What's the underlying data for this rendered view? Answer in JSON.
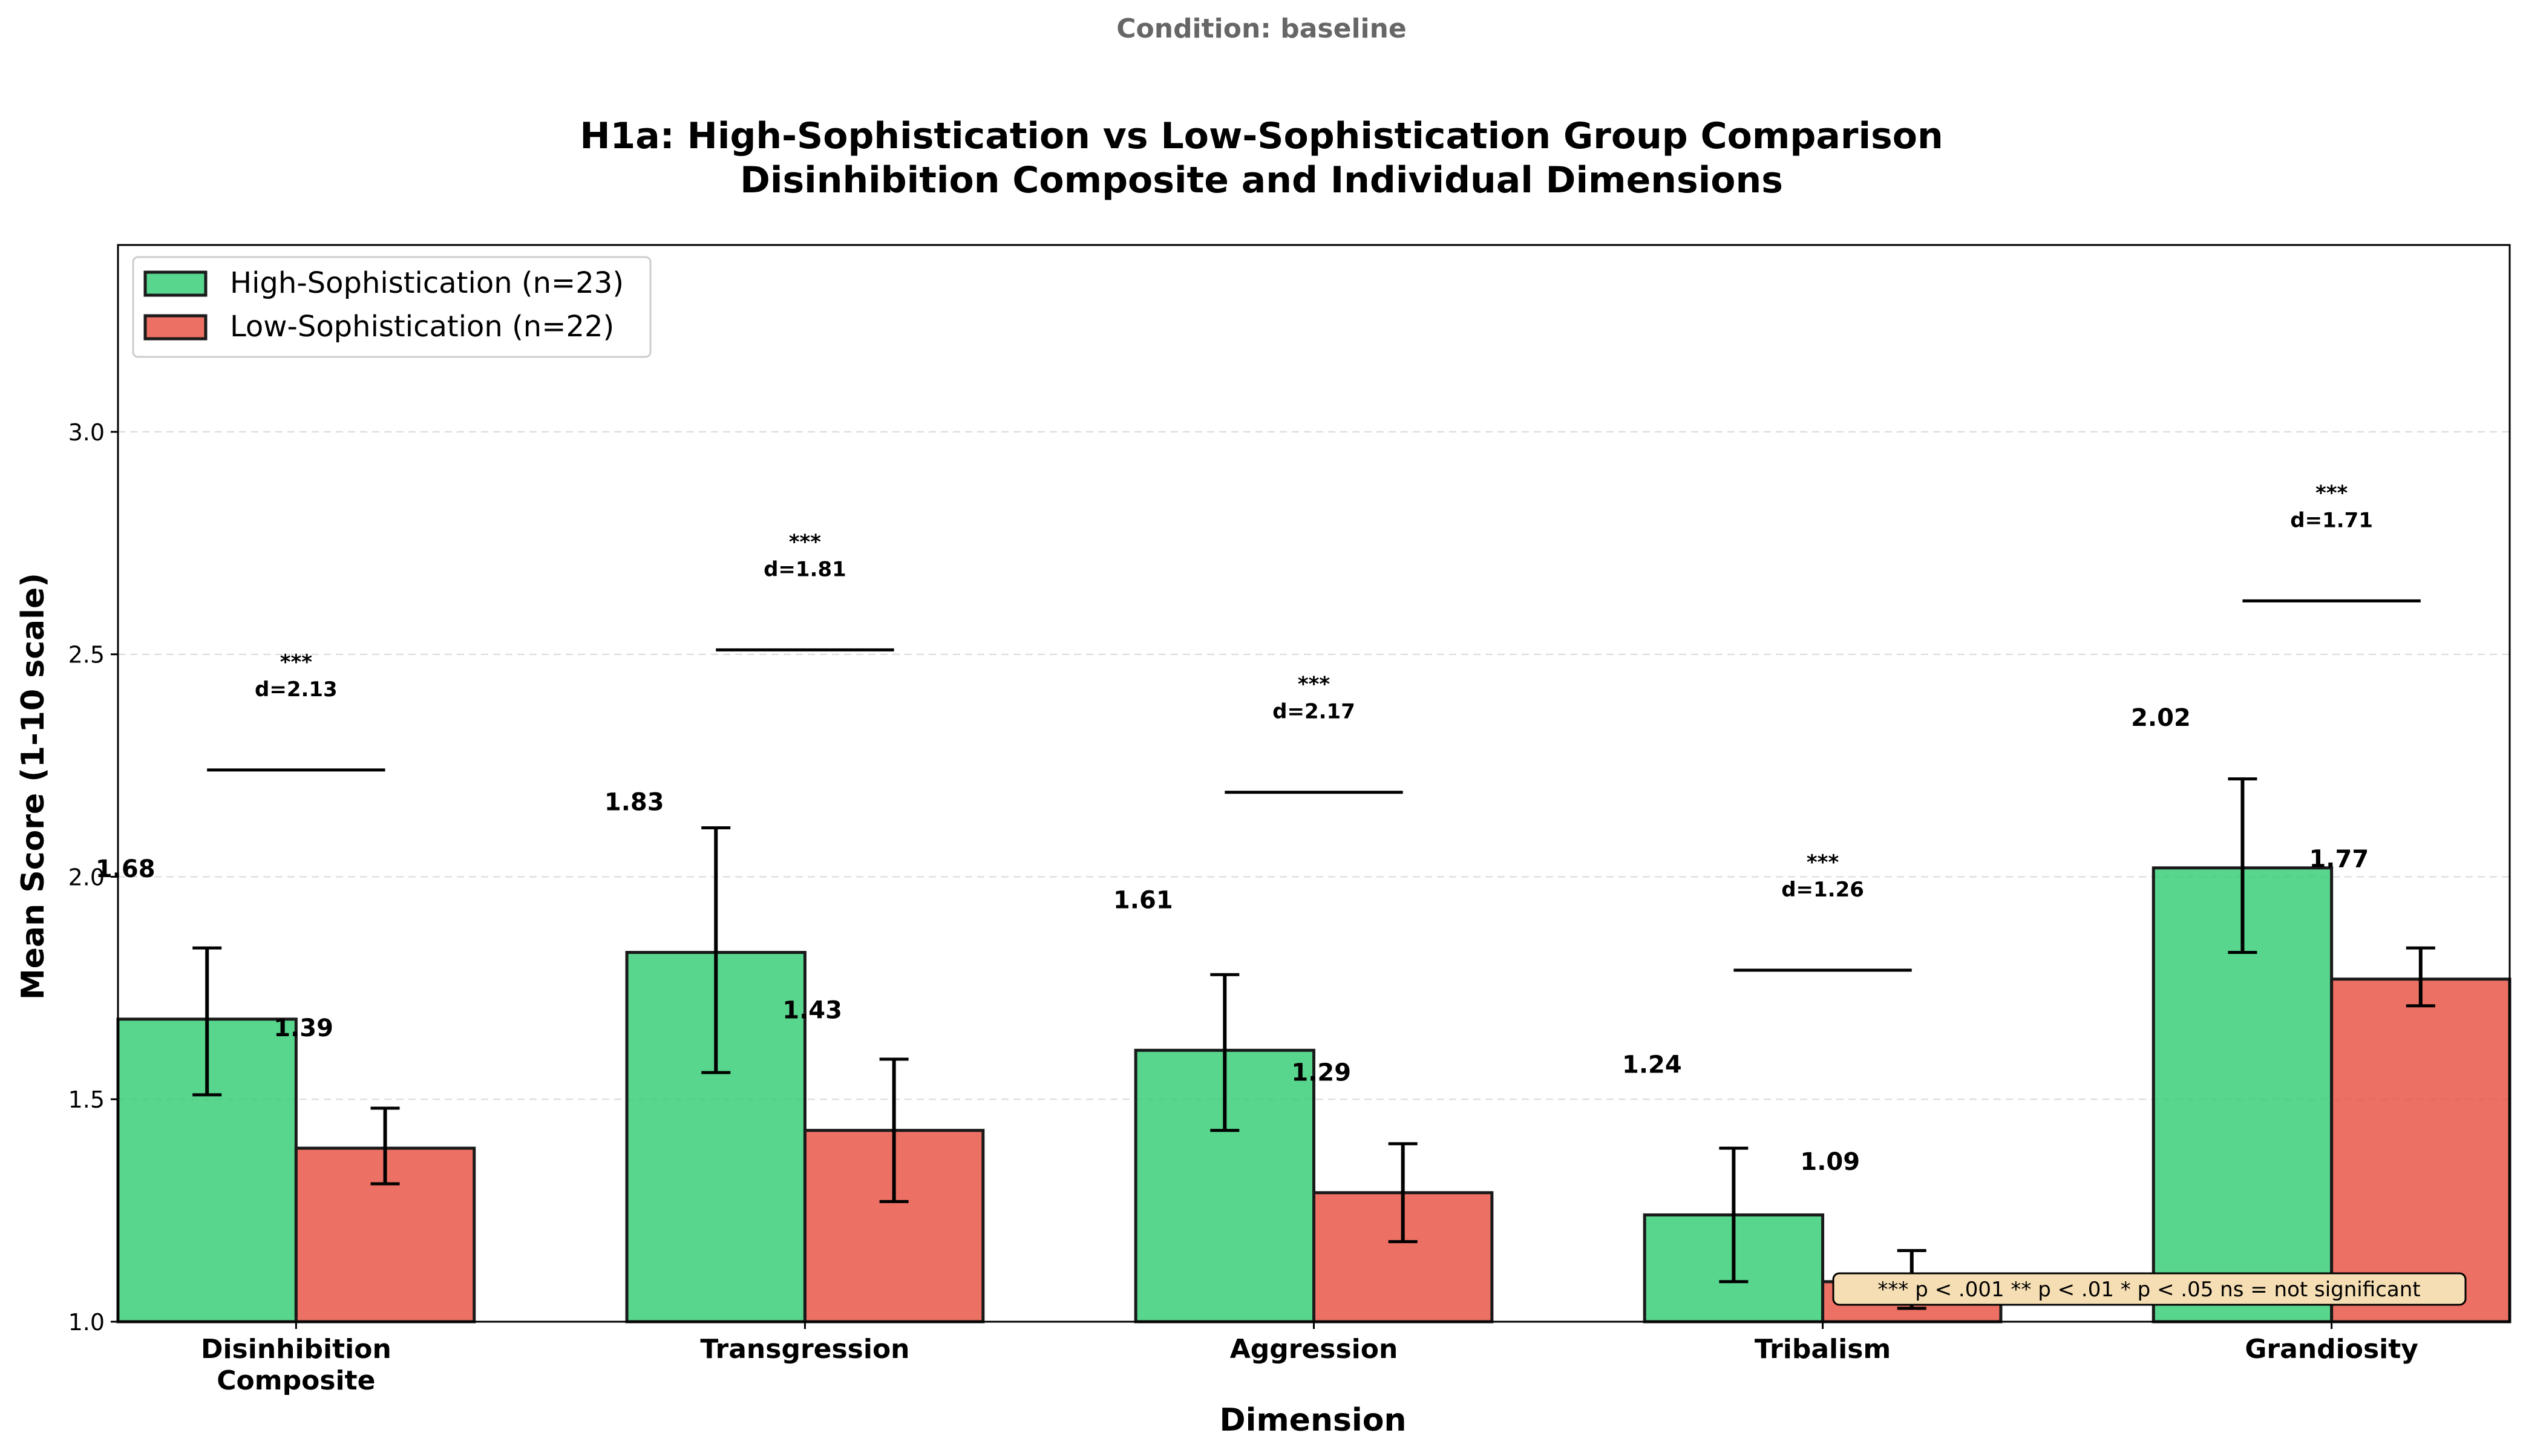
{
  "suptitle": "Condition: baseline",
  "chart_data": {
    "type": "bar",
    "title_line1": "H1a: High-Sophistication vs Low-Sophistication Group Comparison",
    "title_line2": "Disinhibition Composite and Individual Dimensions",
    "xlabel": "Dimension",
    "ylabel": "Mean Score (1-10 scale)",
    "ylim": [
      1.0,
      3.42
    ],
    "yticks": [
      1.0,
      1.5,
      2.0,
      2.5,
      3.0
    ],
    "ytick_labels": [
      "1.0",
      "1.5",
      "2.0",
      "2.5",
      "3.0"
    ],
    "grid": "y-dashed",
    "legend_position": "top-left",
    "categories": [
      [
        "Disinhibition",
        "Composite"
      ],
      [
        "Transgression"
      ],
      [
        "Aggression"
      ],
      [
        "Tribalism"
      ],
      [
        "Grandiosity"
      ]
    ],
    "series": [
      {
        "name": "High-Sophistication (n=23)",
        "color": "#2ecc71",
        "values": [
          1.68,
          1.83,
          1.61,
          1.24,
          2.02
        ],
        "labels": [
          "1.68",
          "1.83",
          "1.61",
          "1.24",
          "2.02"
        ],
        "err_low": [
          1.51,
          1.56,
          1.43,
          1.09,
          1.83
        ],
        "err_high": [
          1.84,
          2.11,
          1.78,
          1.39,
          2.22
        ]
      },
      {
        "name": "Low-Sophistication (n=22)",
        "color": "#e74c3c",
        "values": [
          1.39,
          1.43,
          1.29,
          1.09,
          1.77
        ],
        "labels": [
          "1.39",
          "1.43",
          "1.29",
          "1.09",
          "1.77"
        ],
        "err_low": [
          1.31,
          1.27,
          1.18,
          1.03,
          1.71
        ],
        "err_high": [
          1.48,
          1.59,
          1.4,
          1.16,
          1.84
        ]
      }
    ],
    "significance": [
      {
        "stars": "***",
        "d": "d=2.13",
        "bracket_y": 2.24
      },
      {
        "stars": "***",
        "d": "d=1.81",
        "bracket_y": 2.51
      },
      {
        "stars": "***",
        "d": "d=2.17",
        "bracket_y": 2.19
      },
      {
        "stars": "***",
        "d": "d=1.26",
        "bracket_y": 1.79
      },
      {
        "stars": "***",
        "d": "d=1.71",
        "bracket_y": 2.62
      }
    ],
    "note": "*** p < .001  ** p < .01  * p < .05  ns = not significant",
    "note_bg": "#f5deb3"
  }
}
